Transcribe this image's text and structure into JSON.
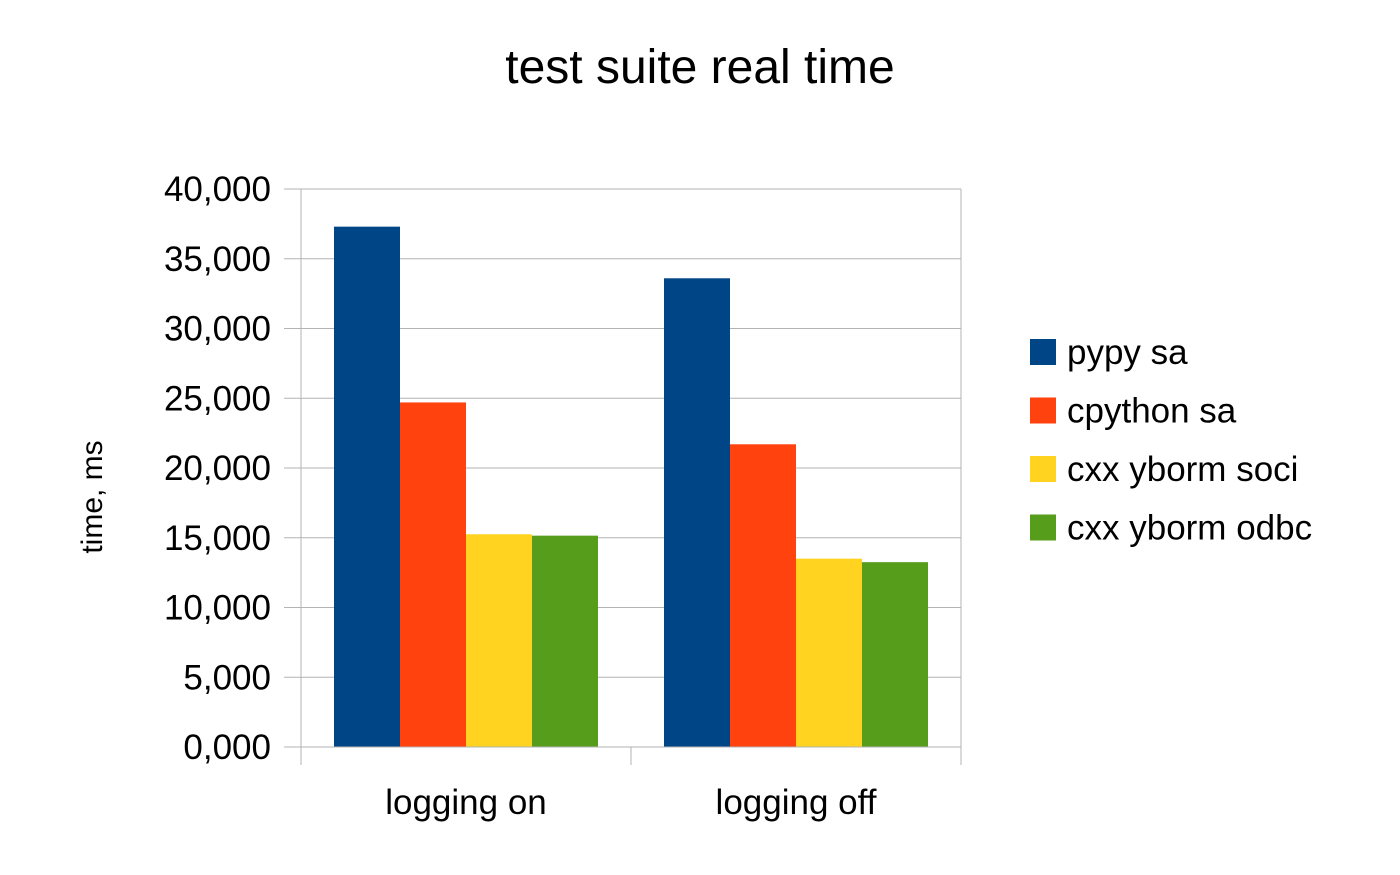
{
  "chart_data": {
    "type": "bar",
    "title": "test suite real time",
    "xlabel": "",
    "ylabel": "time, ms",
    "categories": [
      "logging on",
      "logging off"
    ],
    "ylim": [
      0,
      40000
    ],
    "yticks": [
      0,
      5000,
      10000,
      15000,
      20000,
      25000,
      30000,
      35000,
      40000
    ],
    "ytick_labels": [
      "0,000",
      "5,000",
      "10,000",
      "15,000",
      "20,000",
      "25,000",
      "30,000",
      "35,000",
      "40,000"
    ],
    "grid": true,
    "legend_position": "right",
    "series": [
      {
        "name": "pypy sa",
        "color": "#004586",
        "values": [
          37300,
          33600
        ]
      },
      {
        "name": "cpython sa",
        "color": "#ff420e",
        "values": [
          24700,
          21700
        ]
      },
      {
        "name": "cxx yborm soci",
        "color": "#ffd320",
        "values": [
          15250,
          13500
        ]
      },
      {
        "name": "cxx yborm odbc",
        "color": "#579d1c",
        "values": [
          15150,
          13250
        ]
      }
    ]
  }
}
